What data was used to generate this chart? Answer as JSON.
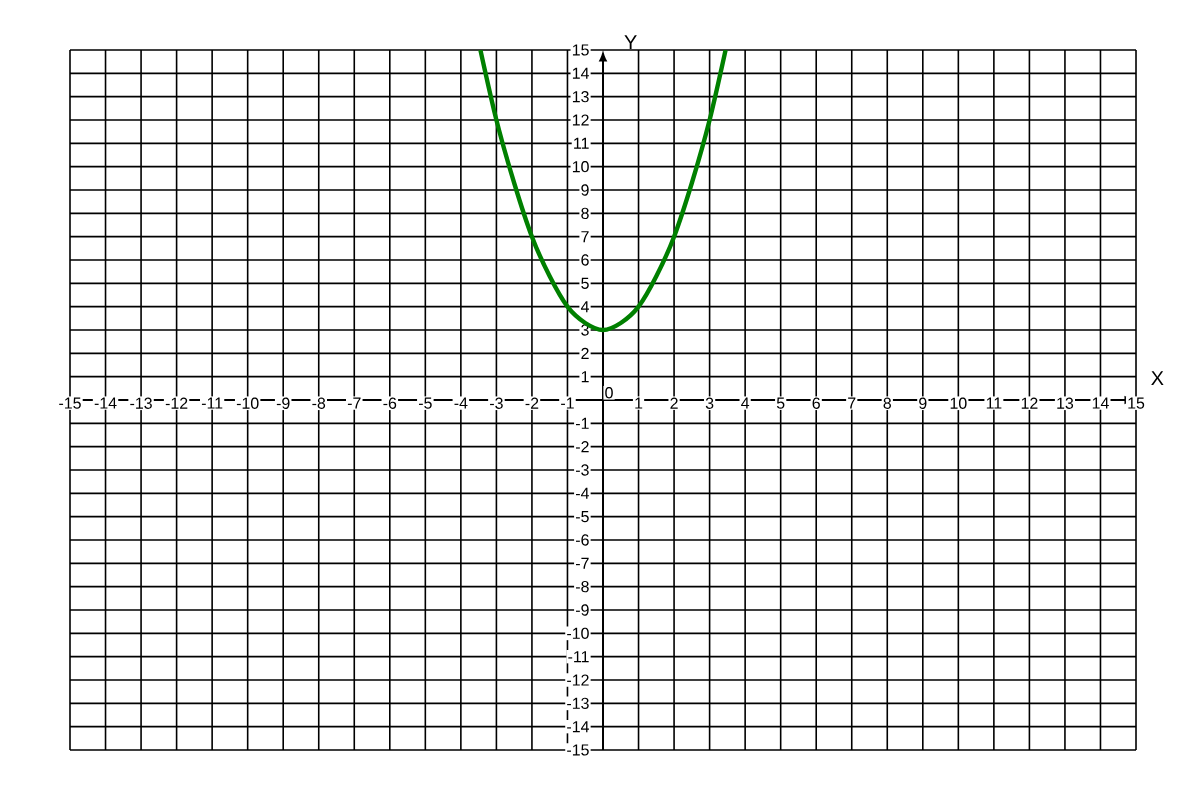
{
  "chart_data": {
    "type": "line",
    "xlabel": "X",
    "ylabel": "Y",
    "xlim": [
      -15,
      15
    ],
    "ylim": [
      -15,
      15
    ],
    "xticks": [
      -15,
      -14,
      -13,
      -12,
      -11,
      -10,
      -9,
      -8,
      -7,
      -6,
      -5,
      -4,
      -3,
      -2,
      -1,
      {
        "value": 0,
        "label": null
      },
      1,
      2,
      3,
      4,
      5,
      6,
      7,
      8,
      9,
      10,
      11,
      12,
      13,
      14,
      15
    ],
    "annotations": [
      "0"
    ],
    "yticks": [
      -15,
      -14,
      -13,
      -12,
      -11,
      -10,
      -9,
      -8,
      -7,
      -6,
      -5,
      -4,
      -3,
      -2,
      -1,
      {
        "value": 0,
        "label": null
      },
      1,
      2,
      3,
      4,
      5,
      6,
      7,
      8,
      9,
      10,
      11,
      12,
      13,
      14,
      15
    ],
    "grid": true,
    "marker": "none",
    "line_style": "solid",
    "series": [
      {
        "color": "#008000",
        "x": [
          -3.45,
          -3,
          -2.5,
          -2,
          -1.5,
          -1,
          -0.5,
          0,
          0.5,
          1,
          1.5,
          2,
          2.5,
          3,
          3.45
        ],
        "values": [
          15,
          12,
          9.3,
          7,
          5.3,
          4,
          3.3,
          3,
          3.3,
          4,
          5.3,
          7,
          9.3,
          12,
          15
        ]
      }
    ]
  }
}
